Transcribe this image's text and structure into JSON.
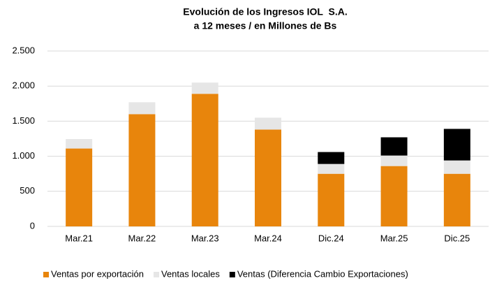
{
  "chart_data": {
    "type": "stacked_bar",
    "title": "Evolución de los Ingresos IOL  S.A.",
    "subtitle": "a 12 meses / en Millones de Bs",
    "categories": [
      "Mar.21",
      "Mar.22",
      "Mar.23",
      "Mar.24",
      "Dic.24",
      "Mar.25",
      "Dic.25"
    ],
    "series": [
      {
        "name": "Ventas por exportación",
        "color": "#e8850c",
        "values": [
          1110,
          1600,
          1890,
          1380,
          750,
          860,
          750
        ]
      },
      {
        "name": "Ventas locales",
        "color": "#e6e6e6",
        "values": [
          135,
          170,
          160,
          170,
          140,
          150,
          190
        ]
      },
      {
        "name": "Ventas (Diferencia Cambio Exportaciones)",
        "color": "#000000",
        "values": [
          null,
          null,
          null,
          null,
          170,
          260,
          450
        ]
      }
    ],
    "ylim": [
      0,
      2500
    ],
    "yticks": [
      0,
      500,
      {
        "value": 1000,
        "label": "1.000"
      },
      {
        "value": 1500,
        "label": "1.500"
      },
      {
        "value": 2000,
        "label": "2.000"
      },
      {
        "value": 2500,
        "label": "2.500"
      }
    ],
    "grid": true,
    "legend": "bottom"
  }
}
